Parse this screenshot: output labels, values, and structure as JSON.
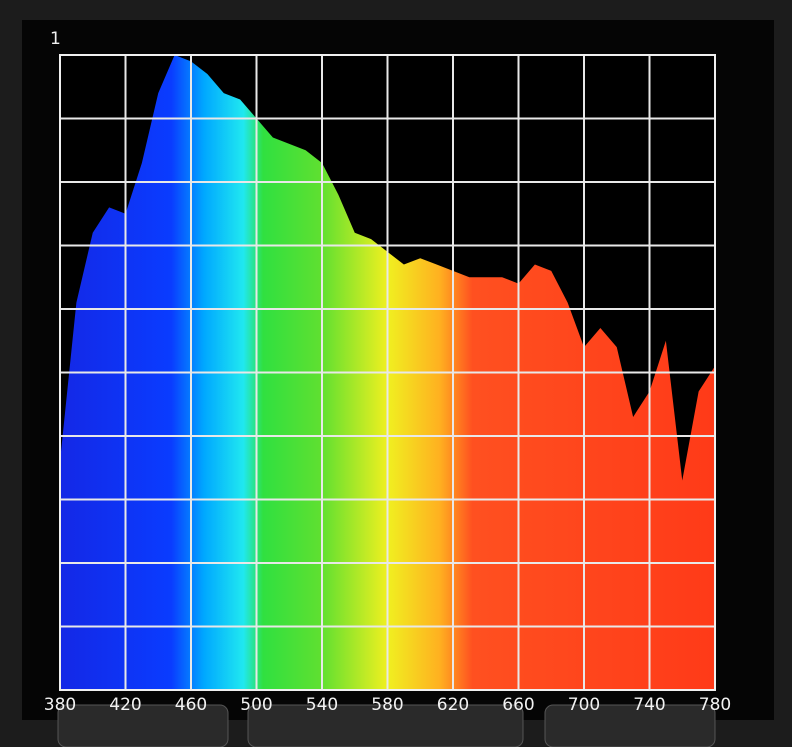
{
  "chart_data": {
    "type": "area",
    "x": [
      380,
      390,
      400,
      410,
      420,
      430,
      440,
      450,
      460,
      470,
      480,
      490,
      500,
      510,
      520,
      530,
      540,
      550,
      560,
      570,
      580,
      590,
      600,
      610,
      620,
      630,
      640,
      650,
      660,
      670,
      680,
      690,
      700,
      710,
      720,
      730,
      740,
      750,
      760,
      770,
      780
    ],
    "values": [
      0.36,
      0.61,
      0.72,
      0.76,
      0.75,
      0.83,
      0.94,
      1.0,
      0.99,
      0.97,
      0.94,
      0.93,
      0.9,
      0.87,
      0.86,
      0.85,
      0.83,
      0.78,
      0.72,
      0.71,
      0.69,
      0.67,
      0.68,
      0.67,
      0.66,
      0.65,
      0.65,
      0.65,
      0.64,
      0.67,
      0.66,
      0.61,
      0.54,
      0.57,
      0.54,
      0.43,
      0.47,
      0.55,
      0.33,
      0.47,
      0.51
    ],
    "xlim": [
      380,
      780
    ],
    "ylim": [
      0,
      1
    ],
    "xticks": [
      380,
      420,
      460,
      500,
      540,
      580,
      620,
      660,
      700,
      740,
      780
    ],
    "yticks": [
      1
    ],
    "ygrid": [
      0,
      0.1,
      0.2,
      0.3,
      0.4,
      0.5,
      0.6,
      0.7,
      0.8,
      0.9,
      1
    ],
    "grid": true
  }
}
